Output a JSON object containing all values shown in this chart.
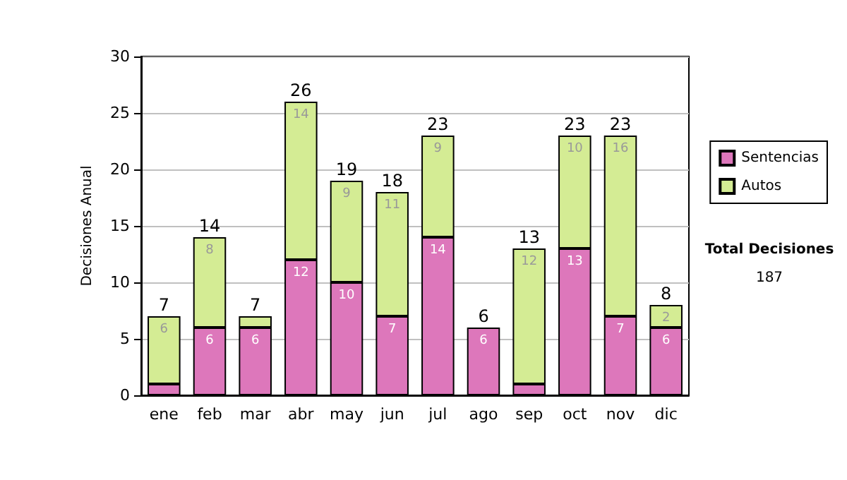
{
  "chart_data": {
    "type": "bar",
    "stacked": true,
    "ylabel": "Decisiones Anual",
    "categories": [
      "ene",
      "feb",
      "mar",
      "abr",
      "may",
      "jun",
      "jul",
      "ago",
      "sep",
      "oct",
      "nov",
      "dic"
    ],
    "series": [
      {
        "name": "Sentencias",
        "color": "#dd77bb",
        "values": [
          1,
          6,
          6,
          12,
          10,
          7,
          14,
          6,
          1,
          13,
          7,
          6
        ],
        "value_labels": [
          null,
          "6",
          "6",
          "12",
          "10",
          "7",
          "14",
          "6",
          null,
          "13",
          "7",
          "6"
        ]
      },
      {
        "name": "Autos",
        "color": "#d4ec94",
        "values": [
          6,
          8,
          1,
          14,
          9,
          11,
          9,
          null,
          12,
          10,
          16,
          2
        ],
        "value_labels": [
          "6",
          "8",
          null,
          "14",
          "9",
          "11",
          "9",
          null,
          "12",
          "10",
          "16",
          "2"
        ]
      }
    ],
    "totals": [
      "7",
      "14",
      "7",
      "26",
      "19",
      "18",
      "23",
      "6",
      "13",
      "23",
      "23",
      "8"
    ],
    "annotations": [
      "Total Decisiones",
      "187"
    ],
    "ylim": [
      0,
      30
    ],
    "yticks": [
      0,
      5,
      10,
      15,
      20,
      25,
      30
    ],
    "grid": "y",
    "legend": "right"
  }
}
